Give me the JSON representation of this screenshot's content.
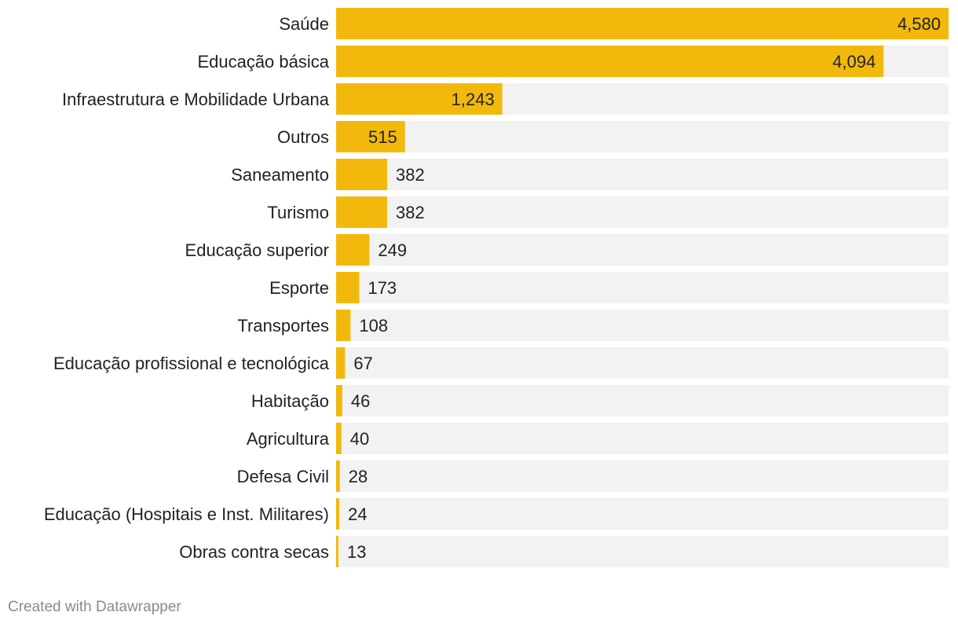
{
  "chart_data": {
    "type": "bar",
    "orientation": "horizontal",
    "categories": [
      "Saúde",
      "Educação básica",
      "Infraestrutura e Mobilidade Urbana",
      "Outros",
      "Saneamento",
      "Turismo",
      "Educação superior",
      "Esporte",
      "Transportes",
      "Educação profissional e tecnológica",
      "Habitação",
      "Agricultura",
      "Defesa Civil",
      "Educação (Hospitais e Inst. Militares)",
      "Obras contra secas"
    ],
    "values": [
      4580,
      4094,
      1243,
      515,
      382,
      382,
      249,
      173,
      108,
      67,
      46,
      40,
      28,
      24,
      13
    ],
    "value_labels": [
      "4,580",
      "4,094",
      "1,243",
      "515",
      "382",
      "382",
      "249",
      "173",
      "108",
      "67",
      "46",
      "40",
      "28",
      "24",
      "13"
    ],
    "xlim": [
      0,
      4580
    ],
    "grid": false,
    "legend": "none",
    "bar_color": "#f2b90c",
    "track_color": "#f2f2f2"
  },
  "footer": {
    "credit": "Created with Datawrapper"
  }
}
